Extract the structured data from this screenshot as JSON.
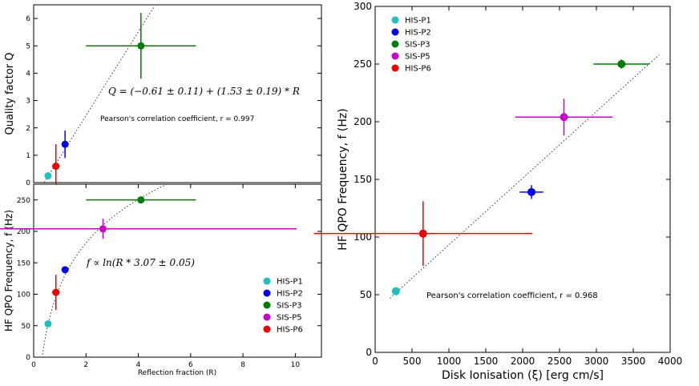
{
  "chart_data": [
    {
      "id": "q",
      "type": "scatter",
      "ylabel": "Quality factor Q",
      "xlim": [
        0,
        11
      ],
      "ylim": [
        0,
        6.5
      ],
      "yticks": [
        0,
        1,
        2,
        3,
        4,
        5,
        6
      ],
      "fit": {
        "type": "linear",
        "intercept": -0.61,
        "slope": 1.53
      },
      "annotation": "Q = (−0.61 ± 0.11) + (1.53 ± 0.19) * R",
      "pearson_text": "Pearson's correlation coefficient, r = 0.997",
      "points": [
        {
          "name": "HIS-P1",
          "color": "#1fbfbf",
          "x": 0.55,
          "y": 0.25,
          "xerr": 0,
          "yerr": 0
        },
        {
          "name": "HIS-P2",
          "color": "#0000ee",
          "x": 1.2,
          "y": 1.4,
          "xerr": 0,
          "yerr": 0.5
        },
        {
          "name": "SIS-P3",
          "color": "#007a00",
          "x": 4.1,
          "y": 5.0,
          "xerr": 2.1,
          "yerr": 1.2
        },
        {
          "name": "HIS-P6",
          "color": "#ee0000",
          "x": 0.85,
          "y": 0.6,
          "xerr": 0.15,
          "yerr": 0.8
        }
      ]
    },
    {
      "id": "fr",
      "type": "scatter",
      "ylabel": "HF QPO Frequency, f (Hz)",
      "xlabel": "Reflection fraction (R)",
      "xlim": [
        0,
        11
      ],
      "ylim": [
        0,
        275
      ],
      "xticks": [
        0,
        2,
        4,
        6,
        8,
        10
      ],
      "yticks": [
        0,
        50,
        100,
        150,
        200,
        250
      ],
      "fit": {
        "type": "log",
        "scale": 100,
        "factor": 3.07
      },
      "annotation": "f ∝ ln(R * 3.07 ± 0.05)",
      "points": [
        {
          "name": "HIS-P1",
          "color": "#1fbfbf",
          "x": 0.55,
          "y": 53,
          "xerr": 0,
          "yerr": 0
        },
        {
          "name": "HIS-P2",
          "color": "#0000ee",
          "x": 1.2,
          "y": 139,
          "xerr": 0,
          "yerr": 5
        },
        {
          "name": "SIS-P3",
          "color": "#007a00",
          "x": 4.1,
          "y": 250,
          "xerr": 2.1,
          "yerr": 4
        },
        {
          "name": "SIS-P5",
          "color": "#cc00cc",
          "x": 2.65,
          "y": 204,
          "xerr": 7.4,
          "yerr": 16
        },
        {
          "name": "HIS-P6",
          "color": "#ee0000",
          "x": 0.85,
          "y": 103,
          "xerr": 0.15,
          "yerr": 28
        }
      ]
    },
    {
      "id": "fx",
      "type": "scatter",
      "ylabel": "HF QPO Frequency, f (Hz)",
      "xlabel": "Disk Ionisation (ξ) [erg cm/s]",
      "xlim": [
        0,
        4000
      ],
      "ylim": [
        0,
        300
      ],
      "xticks": [
        0,
        500,
        1000,
        1500,
        2000,
        2500,
        3000,
        3500,
        4000
      ],
      "yticks": [
        0,
        50,
        100,
        150,
        200,
        250,
        300
      ],
      "fit": {
        "type": "linear",
        "x0": 200,
        "y0": 47,
        "x1": 3850,
        "y1": 258
      },
      "pearson_text": "Pearson's correlation coefficient, r = 0.968",
      "points": [
        {
          "name": "HIS-P1",
          "color": "#1fbfbf",
          "x": 280,
          "y": 53,
          "xerr": 0,
          "yerr": 0
        },
        {
          "name": "HIS-P2",
          "color": "#0000ee",
          "x": 2120,
          "y": 139,
          "xerr": 160,
          "yerr": 6
        },
        {
          "name": "SIS-P3",
          "color": "#007a00",
          "x": 3340,
          "y": 250,
          "xerr": 380,
          "yerr": 4
        },
        {
          "name": "SIS-P5",
          "color": "#cc00cc",
          "x": 2560,
          "y": 204,
          "xerr": 660,
          "yerr": 16
        },
        {
          "name": "HIS-P6",
          "color": "#ee0000",
          "x": 650,
          "y": 103,
          "xerr": 1480,
          "yerr": 28
        }
      ]
    }
  ],
  "legend": [
    "HIS-P1",
    "HIS-P2",
    "SIS-P3",
    "SIS-P5",
    "HIS-P6"
  ],
  "legend_colors": [
    "#1fbfbf",
    "#0000ee",
    "#007a00",
    "#cc00cc",
    "#ee0000"
  ]
}
